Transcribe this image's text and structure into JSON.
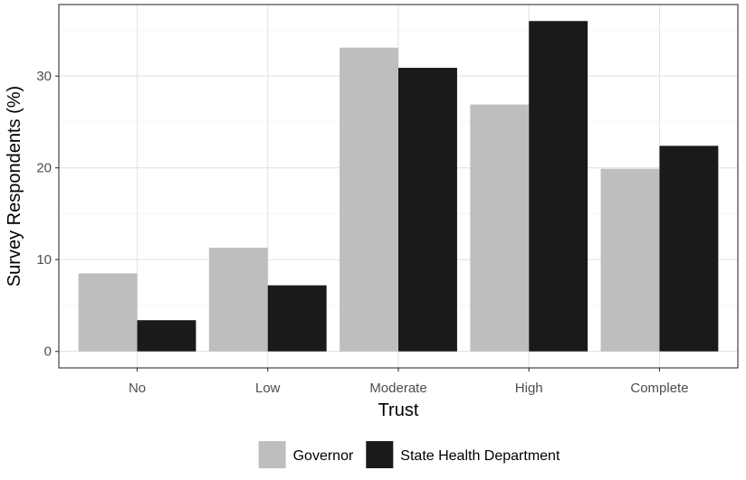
{
  "chart_data": {
    "type": "bar",
    "categories": [
      "No",
      "Low",
      "Moderate",
      "High",
      "Complete"
    ],
    "series": [
      {
        "name": "Governor",
        "values": [
          8.5,
          11.3,
          33.1,
          26.9,
          19.9
        ],
        "color": "#bebebe"
      },
      {
        "name": "State Health Department",
        "values": [
          3.4,
          7.2,
          30.9,
          36.0,
          22.4
        ],
        "color": "#1a1a1a"
      }
    ],
    "xlabel": "Trust",
    "ylabel": "Survey Respondents (%)",
    "ylim": [
      -1.8,
      37.8
    ],
    "yticks": [
      0,
      10,
      20,
      30
    ],
    "grid": true,
    "legend_position": "bottom"
  }
}
